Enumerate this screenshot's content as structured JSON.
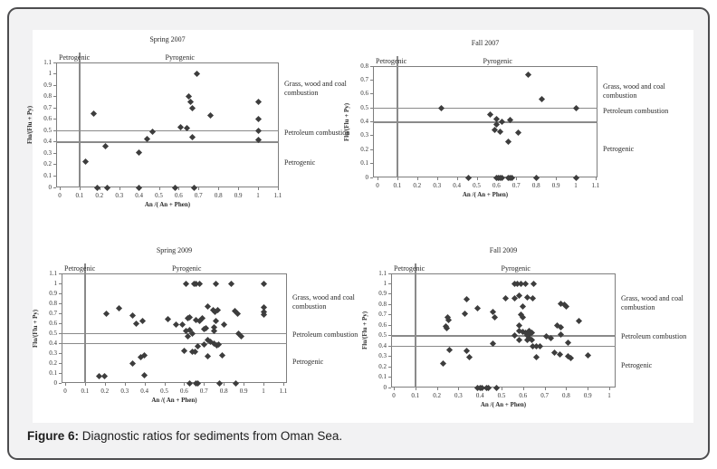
{
  "figure": {
    "caption_label": "Figure 6:",
    "caption_text": " Diagnostic ratios for sediments from Oman Sea."
  },
  "marker_color": "#3d3d3d",
  "chart_data": [
    {
      "type": "scatter",
      "title": "Spring 2007",
      "xlabel": "An /( An + Phen)",
      "ylabel": "Flu/(Flu + Py)",
      "xlim": [
        0,
        1.1
      ],
      "ylim": [
        0,
        1.1
      ],
      "xticks": [
        "0",
        "0.1",
        "0.2",
        "0.3",
        "0.4",
        "0.5",
        "0.6",
        "0.7",
        "0.8",
        "0.9",
        "1",
        "1.1"
      ],
      "yticks": [
        "0",
        "0.1",
        "0.2",
        "0.3",
        "0.4",
        "0.5",
        "0.6",
        "0.7",
        "0.8",
        "0.9",
        "1",
        "1.1"
      ],
      "reference_lines": {
        "horizontal": [
          0.4,
          0.5
        ],
        "vertical": [
          0.1
        ]
      },
      "annotations": {
        "top_left": "Petrogenic",
        "top_center": "Pyrogenic",
        "right_top": "Grass, wood and coal combustion",
        "right_middle": "Petroleum combustion",
        "right_bottom": "Petrogenic"
      },
      "points": [
        [
          0.13,
          0.23
        ],
        [
          0.17,
          0.65
        ],
        [
          0.23,
          0.36
        ],
        [
          0.4,
          0.31
        ],
        [
          0.44,
          0.43
        ],
        [
          0.47,
          0.49
        ],
        [
          0.61,
          0.53
        ],
        [
          0.64,
          0.52
        ],
        [
          0.65,
          0.8
        ],
        [
          0.66,
          0.75
        ],
        [
          0.67,
          0.7
        ],
        [
          0.69,
          1.0
        ],
        [
          0.67,
          0.44
        ],
        [
          0.76,
          0.63
        ],
        [
          1.0,
          0.75
        ],
        [
          1.0,
          0.6
        ],
        [
          1.0,
          0.5
        ],
        [
          1.0,
          0.42
        ],
        [
          0.19,
          0
        ],
        [
          0.24,
          0
        ],
        [
          0.4,
          0
        ],
        [
          0.58,
          0
        ],
        [
          0.68,
          0
        ]
      ]
    },
    {
      "type": "scatter",
      "title": "Fall 2007",
      "xlabel": "An /( An + Phen)",
      "ylabel": "Flu/(Flu + Py)",
      "xlim": [
        0,
        1.1
      ],
      "ylim": [
        0,
        0.8
      ],
      "xticks": [
        "0",
        "0.1",
        "0.2",
        "0.3",
        "0.4",
        "0.5",
        "0.6",
        "0.7",
        "0.8",
        "0.9",
        "1",
        "1.1"
      ],
      "yticks": [
        "0",
        "0.1",
        "0.2",
        "0.3",
        "0.4",
        "0.5",
        "0.6",
        "0.7",
        "0.8"
      ],
      "reference_lines": {
        "horizontal": [
          0.4,
          0.5
        ],
        "vertical": [
          0.1
        ]
      },
      "annotations": {
        "top_left": "Petrogenic",
        "top_center": "Pyrogenic",
        "right_top": "Grass, wood and coal combustion",
        "right_middle": "Petroleum combustion",
        "right_bottom": "Petrogenic"
      },
      "points": [
        [
          0.32,
          0.5
        ],
        [
          0.57,
          0.45
        ],
        [
          0.6,
          0.42
        ],
        [
          0.6,
          0.38
        ],
        [
          0.59,
          0.34
        ],
        [
          0.62,
          0.33
        ],
        [
          0.63,
          0.4
        ],
        [
          0.67,
          0.41
        ],
        [
          0.66,
          0.26
        ],
        [
          0.71,
          0.32
        ],
        [
          0.76,
          0.74
        ],
        [
          0.83,
          0.56
        ],
        [
          1.0,
          0.5
        ],
        [
          0.46,
          0
        ],
        [
          0.6,
          0
        ],
        [
          0.61,
          0
        ],
        [
          0.62,
          0
        ],
        [
          0.63,
          0
        ],
        [
          0.66,
          0
        ],
        [
          0.67,
          0
        ],
        [
          0.68,
          0
        ],
        [
          0.8,
          0
        ],
        [
          1.0,
          0
        ]
      ]
    },
    {
      "type": "scatter",
      "title": "Spring 2009",
      "xlabel": "An /( An + Phen)",
      "ylabel": "Flu/(Flu + Py)",
      "xlim": [
        0,
        1.1
      ],
      "ylim": [
        0,
        1.1
      ],
      "xticks": [
        "0",
        "0.1",
        "0.2",
        "0.3",
        "0.4",
        "0.5",
        "0.6",
        "0.7",
        "0.8",
        "0.9",
        "1",
        "1.1"
      ],
      "yticks": [
        "0",
        "0.1",
        "0.2",
        "0.3",
        "0.4",
        "0.5",
        "0.6",
        "0.7",
        "0.8",
        "0.9",
        "1",
        "1.1"
      ],
      "reference_lines": {
        "horizontal": [
          0.4,
          0.5
        ],
        "vertical": [
          0.1
        ]
      },
      "annotations": {
        "top_left": "Petrogenic",
        "top_center": "Pyrogenic",
        "right_top": "Grass, wood and coal combustion",
        "right_middle": "Petroleum combustion",
        "right_bottom": "Petrogenic"
      },
      "points": [
        [
          0.61,
          1
        ],
        [
          0.65,
          1
        ],
        [
          0.66,
          1
        ],
        [
          0.68,
          1
        ],
        [
          0.76,
          1
        ],
        [
          0.84,
          1
        ],
        [
          1.0,
          1
        ],
        [
          0.21,
          0.7
        ],
        [
          0.27,
          0.75
        ],
        [
          0.34,
          0.68
        ],
        [
          0.36,
          0.6
        ],
        [
          0.39,
          0.62
        ],
        [
          0.52,
          0.64
        ],
        [
          0.56,
          0.59
        ],
        [
          0.59,
          0.59
        ],
        [
          0.62,
          0.65
        ],
        [
          0.63,
          0.66
        ],
        [
          0.66,
          0.63
        ],
        [
          0.68,
          0.62
        ],
        [
          0.69,
          0.65
        ],
        [
          0.72,
          0.77
        ],
        [
          0.745,
          0.735
        ],
        [
          0.755,
          0.71
        ],
        [
          0.77,
          0.735
        ],
        [
          0.76,
          0.62
        ],
        [
          0.8,
          0.59
        ],
        [
          0.855,
          0.72
        ],
        [
          0.87,
          0.7
        ],
        [
          1.0,
          0.755
        ],
        [
          1.0,
          0.715
        ],
        [
          1.0,
          0.685
        ],
        [
          0.61,
          0.52
        ],
        [
          0.63,
          0.53
        ],
        [
          0.64,
          0.5
        ],
        [
          0.62,
          0.465
        ],
        [
          0.7,
          0.54
        ],
        [
          0.71,
          0.55
        ],
        [
          0.75,
          0.56
        ],
        [
          0.75,
          0.52
        ],
        [
          0.875,
          0.5
        ],
        [
          0.89,
          0.47
        ],
        [
          0.72,
          0.43
        ],
        [
          0.735,
          0.41
        ],
        [
          0.75,
          0.395
        ],
        [
          0.765,
          0.375
        ],
        [
          0.775,
          0.39
        ],
        [
          0.7,
          0.39
        ],
        [
          0.67,
          0.37
        ],
        [
          0.6,
          0.32
        ],
        [
          0.64,
          0.31
        ],
        [
          0.655,
          0.315
        ],
        [
          0.72,
          0.27
        ],
        [
          0.79,
          0.28
        ],
        [
          0.34,
          0.2
        ],
        [
          0.38,
          0.26
        ],
        [
          0.4,
          0.275
        ],
        [
          0.17,
          0.07
        ],
        [
          0.2,
          0.07
        ],
        [
          0.4,
          0.08
        ],
        [
          0.63,
          0
        ],
        [
          0.66,
          0
        ],
        [
          0.67,
          0
        ],
        [
          0.78,
          0
        ],
        [
          0.86,
          0
        ]
      ]
    },
    {
      "type": "scatter",
      "title": "Fall 2009",
      "xlabel": "An /( An + Phen)",
      "ylabel": "Flu/(Flu + Py)",
      "xlim": [
        0,
        1.0
      ],
      "ylim": [
        0,
        1.1
      ],
      "xticks": [
        "0",
        "0.1",
        "0.2",
        "0.3",
        "0.4",
        "0.5",
        "0.6",
        "0.7",
        "0.8",
        "0.9",
        "1"
      ],
      "yticks": [
        "0",
        "0.1",
        "0.2",
        "0.3",
        "0.4",
        "0.5",
        "0.6",
        "0.7",
        "0.8",
        "0.9",
        "1",
        "1.1"
      ],
      "reference_lines": {
        "horizontal": [
          0.4,
          0.5
        ],
        "vertical": [
          0.1
        ]
      },
      "annotations": {
        "top_left": "Petrogenic",
        "top_center": "Pyrogenic",
        "right_top": "Grass, wood and coal combustion",
        "right_middle": "Petroleum combustion",
        "right_bottom": "Petrogenic"
      },
      "points": [
        [
          0.56,
          1
        ],
        [
          0.575,
          1
        ],
        [
          0.59,
          1
        ],
        [
          0.61,
          1
        ],
        [
          0.65,
          1
        ],
        [
          0.58,
          0.89
        ],
        [
          0.52,
          0.86
        ],
        [
          0.56,
          0.86
        ],
        [
          0.62,
          0.87
        ],
        [
          0.645,
          0.86
        ],
        [
          0.34,
          0.85
        ],
        [
          0.775,
          0.81
        ],
        [
          0.79,
          0.8
        ],
        [
          0.8,
          0.78
        ],
        [
          0.39,
          0.76
        ],
        [
          0.46,
          0.73
        ],
        [
          0.6,
          0.78
        ],
        [
          0.33,
          0.71
        ],
        [
          0.59,
          0.7
        ],
        [
          0.6,
          0.68
        ],
        [
          0.47,
          0.68
        ],
        [
          0.25,
          0.68
        ],
        [
          0.255,
          0.65
        ],
        [
          0.86,
          0.64
        ],
        [
          0.76,
          0.6
        ],
        [
          0.775,
          0.58
        ],
        [
          0.24,
          0.59
        ],
        [
          0.245,
          0.57
        ],
        [
          0.58,
          0.6
        ],
        [
          0.58,
          0.55
        ],
        [
          0.6,
          0.54
        ],
        [
          0.61,
          0.53
        ],
        [
          0.63,
          0.55
        ],
        [
          0.64,
          0.53
        ],
        [
          0.63,
          0.51
        ],
        [
          0.56,
          0.5
        ],
        [
          0.62,
          0.5
        ],
        [
          0.63,
          0.48
        ],
        [
          0.64,
          0.46
        ],
        [
          0.71,
          0.49
        ],
        [
          0.73,
          0.475
        ],
        [
          0.775,
          0.51
        ],
        [
          0.46,
          0.42
        ],
        [
          0.58,
          0.46
        ],
        [
          0.62,
          0.46
        ],
        [
          0.81,
          0.43
        ],
        [
          0.645,
          0.4
        ],
        [
          0.66,
          0.4
        ],
        [
          0.68,
          0.4
        ],
        [
          0.26,
          0.36
        ],
        [
          0.34,
          0.35
        ],
        [
          0.35,
          0.29
        ],
        [
          0.66,
          0.29
        ],
        [
          0.745,
          0.335
        ],
        [
          0.77,
          0.32
        ],
        [
          0.81,
          0.3
        ],
        [
          0.82,
          0.28
        ],
        [
          0.9,
          0.31
        ],
        [
          0.23,
          0.23
        ],
        [
          0.39,
          0
        ],
        [
          0.4,
          0
        ],
        [
          0.41,
          0
        ],
        [
          0.43,
          0
        ],
        [
          0.44,
          0
        ],
        [
          0.475,
          0
        ]
      ]
    }
  ]
}
